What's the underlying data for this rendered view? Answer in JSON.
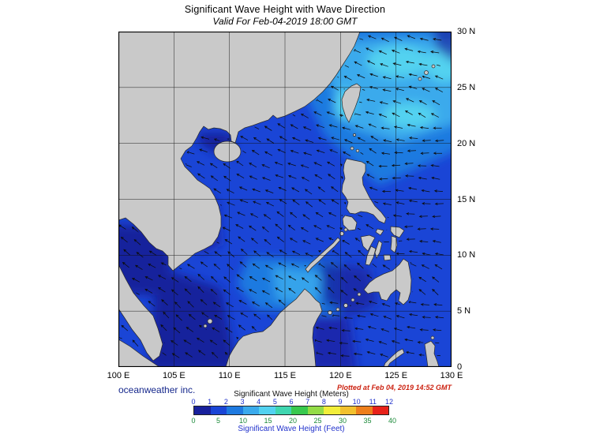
{
  "title": "Significant Wave Height with Wave Direction",
  "subtitle": "Valid For Feb-04-2019 18:00 GMT",
  "credit": "oceanweather inc.",
  "plotted_note": "Plotted at Feb 04, 2019 14:52 GMT",
  "axes": {
    "lon_labels": [
      "100 E",
      "105 E",
      "110 E",
      "115 E",
      "120 E",
      "125 E",
      "130 E"
    ],
    "lat_labels": [
      "30 N",
      "25 N",
      "20 N",
      "15 N",
      "10 N",
      "5 N",
      "0"
    ]
  },
  "colorbar": {
    "meters_title": "Significant Wave Height (Meters)",
    "feet_title": "Significant Wave Height (Feet)",
    "meters_ticks": [
      0,
      1,
      2,
      3,
      4,
      5,
      6,
      7,
      8,
      9,
      10,
      11,
      12
    ],
    "feet_ticks": [
      0,
      5,
      10,
      15,
      20,
      25,
      30,
      35,
      40
    ],
    "colors": [
      "#18209c",
      "#1a45d6",
      "#1e7ae0",
      "#3aaaec",
      "#52d2f0",
      "#3fd6b0",
      "#38c94e",
      "#93dc46",
      "#f2ee3a",
      "#f2c12e",
      "#ee7f1c",
      "#e8221a"
    ],
    "meters_tick_color": "#2233cc",
    "feet_tick_color": "#1c8a3a",
    "meters_title_color": "#101010",
    "feet_title_color": "#2233cc"
  },
  "map": {
    "land_color": "#c9c9c9",
    "coast_color": "#2b2b2b",
    "grid_color": "#101010",
    "arrow_color": "#0c0c0c",
    "frame_color": "#000000"
  },
  "credit_color": "#16288c",
  "plotted_color": "#cc2211"
}
